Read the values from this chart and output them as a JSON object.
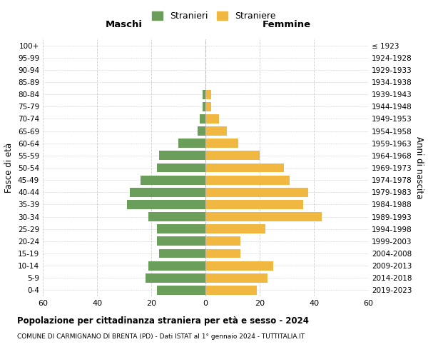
{
  "age_groups": [
    "0-4",
    "5-9",
    "10-14",
    "15-19",
    "20-24",
    "25-29",
    "30-34",
    "35-39",
    "40-44",
    "45-49",
    "50-54",
    "55-59",
    "60-64",
    "65-69",
    "70-74",
    "75-79",
    "80-84",
    "85-89",
    "90-94",
    "95-99",
    "100+"
  ],
  "birth_years": [
    "2019-2023",
    "2014-2018",
    "2009-2013",
    "2004-2008",
    "1999-2003",
    "1994-1998",
    "1989-1993",
    "1984-1988",
    "1979-1983",
    "1974-1978",
    "1969-1973",
    "1964-1968",
    "1959-1963",
    "1954-1958",
    "1949-1953",
    "1944-1948",
    "1939-1943",
    "1934-1938",
    "1929-1933",
    "1924-1928",
    "≤ 1923"
  ],
  "males": [
    18,
    22,
    21,
    17,
    18,
    18,
    21,
    29,
    28,
    24,
    18,
    17,
    10,
    3,
    2,
    1,
    1,
    0,
    0,
    0,
    0
  ],
  "females": [
    19,
    23,
    25,
    13,
    13,
    22,
    43,
    36,
    38,
    31,
    29,
    20,
    12,
    8,
    5,
    2,
    2,
    0,
    0,
    0,
    0
  ],
  "male_color": "#6a9e5a",
  "female_color": "#f0b840",
  "title": "Popolazione per cittadinanza straniera per età e sesso - 2024",
  "subtitle": "COMUNE DI CARMIGNANO DI BRENTA (PD) - Dati ISTAT al 1° gennaio 2024 - TUTTITALIA.IT",
  "xlabel_left": "Maschi",
  "xlabel_right": "Femmine",
  "ylabel_left": "Fasce di età",
  "ylabel_right": "Anni di nascita",
  "legend_male": "Stranieri",
  "legend_female": "Straniere",
  "xlim": 60,
  "background_color": "#ffffff",
  "grid_color": "#cccccc"
}
